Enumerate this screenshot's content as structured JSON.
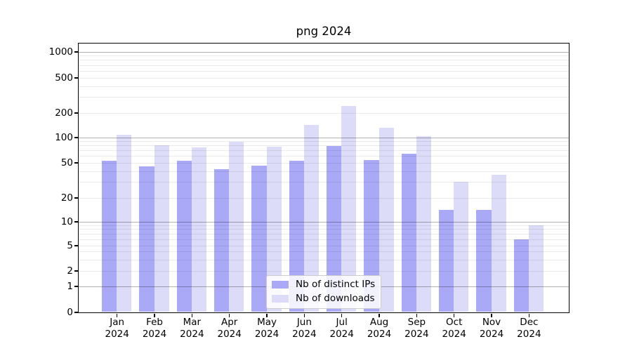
{
  "figure": {
    "title": "png 2024"
  },
  "legend": {
    "items": [
      {
        "label": "Nb of distinct IPs"
      },
      {
        "label": "Nb of downloads"
      }
    ]
  },
  "chart_data": {
    "type": "bar",
    "title": "png 2024",
    "categories": [
      "Jan 2024",
      "Feb 2024",
      "Mar 2024",
      "Apr 2024",
      "May 2024",
      "Jun 2024",
      "Jul 2024",
      "Aug 2024",
      "Sep 2024",
      "Oct 2024",
      "Nov 2024",
      "Dec 2024"
    ],
    "series": [
      {
        "name": "Nb of distinct IPs",
        "color": "#a9a9f7",
        "values": [
          52,
          45,
          52,
          42,
          46,
          52,
          79,
          53,
          63,
          14,
          14,
          6
        ]
      },
      {
        "name": "Nb of downloads",
        "color": "#dcdcf9",
        "values": [
          107,
          80,
          75,
          89,
          77,
          142,
          240,
          130,
          104,
          30,
          36,
          9
        ]
      }
    ],
    "xlabel": "",
    "ylabel": "",
    "yscale": "symlog",
    "yticks": [
      0,
      1,
      2,
      5,
      10,
      20,
      50,
      100,
      200,
      500,
      1000
    ],
    "ylim": [
      0,
      1200
    ],
    "grid": true,
    "legend_position": "lower center"
  }
}
